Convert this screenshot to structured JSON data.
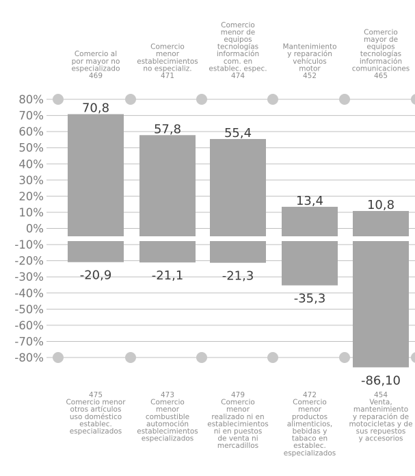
{
  "chart_data": {
    "type": "bar",
    "ylim": [
      -80,
      80
    ],
    "y_ticks": [
      "80%",
      "70%",
      "60%",
      "50%",
      "40%",
      "30%",
      "20%",
      "10%",
      "0%",
      "-10%",
      "-20%",
      "-30%",
      "-40%",
      "-50%",
      "-60%",
      "-70%",
      "-80%"
    ],
    "grid": true,
    "bar_color": "#a6a6a6",
    "grid_color": "#bfbfbf",
    "top_series": {
      "values": [
        70.8,
        57.8,
        55.4,
        13.4,
        10.8
      ],
      "value_labels": [
        "70,8",
        "57,8",
        "55,4",
        "13,4",
        "10,8"
      ],
      "categories": [
        [
          "Comercio al",
          "por mayor no",
          "especializado",
          "469"
        ],
        [
          "Comercio",
          "menor",
          "establecimientos",
          "no especializ.",
          "471"
        ],
        [
          "Comercio",
          "menor de",
          "equipos",
          "tecnologías",
          "información",
          "com. en",
          "establec. espec.",
          "474"
        ],
        [
          "Mantenimiento",
          "y reparación",
          "vehículos",
          "motor",
          "452"
        ],
        [
          "Comercio",
          "mayor de",
          "equipos",
          "tecnologías",
          "información",
          "comunicaciones",
          "465"
        ]
      ]
    },
    "bottom_series": {
      "values": [
        -20.9,
        -21.1,
        -21.3,
        -35.3,
        -86.1
      ],
      "value_labels": [
        "-20,9",
        "-21,1",
        "-21,3",
        "-35,3",
        "-86,10"
      ],
      "categories": [
        [
          "475",
          "Comercio menor",
          "otros artículos",
          "uso doméstico",
          "establec.",
          "especializados"
        ],
        [
          "473",
          "Comercio",
          "menor",
          "combustible",
          "automoción",
          "establecimientos",
          "especializados"
        ],
        [
          "479",
          "Comercio",
          "menor",
          "realizado ni en",
          "establecimientos",
          "ni en puestos",
          "de venta ni",
          "mercadillos"
        ],
        [
          "472",
          "Comercio",
          "menor",
          "productos",
          "alimenticios,",
          "bebidas y",
          "tabaco en",
          "establec.",
          "especializados"
        ],
        [
          "454",
          "Venta,",
          "mantenimiento",
          "y reparación de",
          "motocicletas y de",
          "sus repuestos",
          "y accesorios"
        ]
      ]
    }
  }
}
